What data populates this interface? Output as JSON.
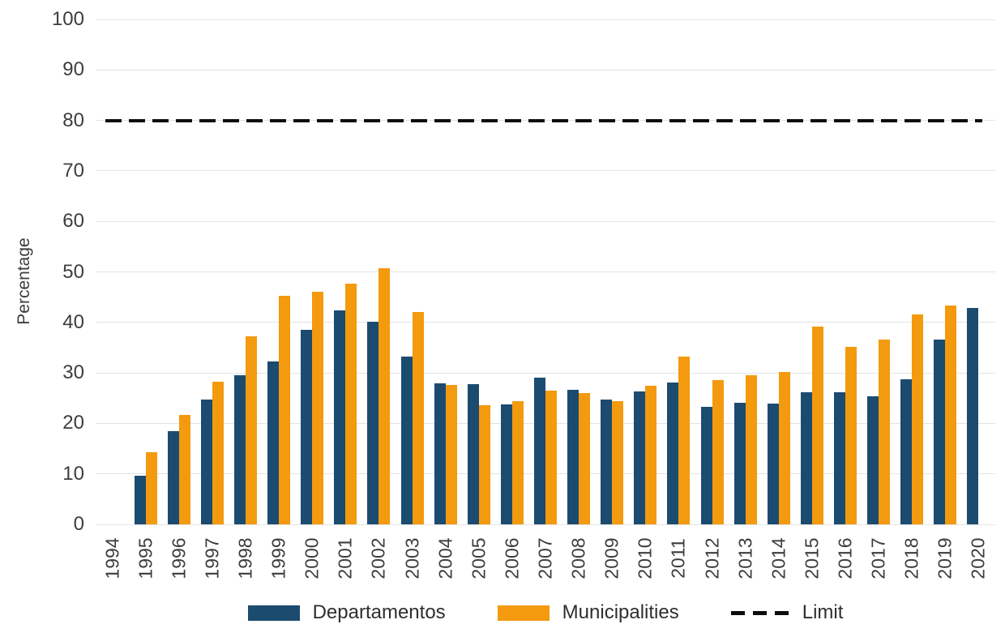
{
  "chart_data": {
    "type": "bar",
    "title": "",
    "xlabel": "",
    "ylabel": "Percentage",
    "ylim": [
      0,
      100
    ],
    "yticks": [
      0,
      10,
      20,
      30,
      40,
      50,
      60,
      70,
      80,
      90,
      100
    ],
    "grid": "horizontal",
    "categories": [
      "1994",
      "1995",
      "1996",
      "1997",
      "1998",
      "1999",
      "2000",
      "2001",
      "2002",
      "2003",
      "2004",
      "2005",
      "2006",
      "2007",
      "2008",
      "2009",
      "2010",
      "2011",
      "2012",
      "2013",
      "2014",
      "2015",
      "2016",
      "2017",
      "2018",
      "2019",
      "2020"
    ],
    "series": [
      {
        "name": "Departamentos",
        "color": "#1C4B70",
        "values": [
          null,
          9.6,
          18.4,
          24.8,
          29.5,
          32.3,
          38.5,
          42.4,
          40.2,
          33.3,
          28.0,
          27.7,
          23.7,
          29.1,
          26.7,
          24.8,
          26.3,
          28.1,
          23.3,
          24.0,
          23.9,
          26.1,
          26.1,
          25.4,
          28.7,
          36.6,
          42.9
        ]
      },
      {
        "name": "Municipalities",
        "color": "#F39A0E",
        "values": [
          null,
          14.3,
          21.7,
          28.2,
          37.3,
          45.3,
          46.0,
          47.7,
          50.8,
          42.1,
          27.6,
          23.6,
          24.4,
          26.5,
          26.0,
          24.4,
          27.4,
          33.2,
          28.6,
          29.5,
          30.1,
          39.1,
          35.2,
          36.6,
          41.5,
          43.4,
          null
        ]
      }
    ],
    "limit_line": {
      "label": "Limit",
      "value": 80,
      "color": "#0d0d0d",
      "style": "dashed"
    },
    "legend": {
      "position": "bottom",
      "entries": [
        "Departamentos",
        "Municipalities",
        "Limit"
      ]
    },
    "colors": {
      "gridline": "#e3e3e3",
      "tick_text": "#3d3d3d",
      "background": "#ffffff"
    }
  }
}
